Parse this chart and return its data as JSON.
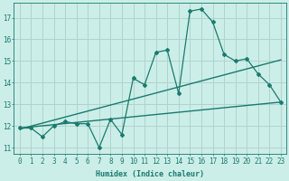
{
  "xlabel": "Humidex (Indice chaleur)",
  "bg_color": "#cceee8",
  "grid_color": "#aed4ce",
  "line_color": "#1a7a6e",
  "xlim": [
    -0.5,
    23.5
  ],
  "ylim": [
    10.7,
    17.7
  ],
  "x_ticks": [
    0,
    1,
    2,
    3,
    4,
    5,
    6,
    7,
    8,
    9,
    10,
    11,
    12,
    13,
    14,
    15,
    16,
    17,
    18,
    19,
    20,
    21,
    22,
    23
  ],
  "y_ticks": [
    11,
    12,
    13,
    14,
    15,
    16,
    17
  ],
  "main_x": [
    0,
    1,
    2,
    3,
    4,
    5,
    6,
    7,
    8,
    9,
    10,
    11,
    12,
    13,
    14,
    15,
    16,
    17,
    18,
    19,
    20,
    21,
    22,
    23
  ],
  "main_y": [
    11.9,
    11.9,
    11.5,
    12.0,
    12.2,
    12.1,
    12.1,
    11.0,
    12.3,
    11.6,
    14.2,
    13.9,
    15.4,
    15.5,
    13.5,
    17.3,
    17.4,
    16.8,
    15.3,
    15.0,
    15.1,
    14.4,
    13.9,
    13.1
  ],
  "line2_x": [
    0,
    23
  ],
  "line2_y": [
    11.9,
    13.1
  ],
  "line3_x": [
    0,
    23
  ],
  "line3_y": [
    11.85,
    15.05
  ],
  "tick_fontsize": 5.5,
  "xlabel_fontsize": 6.0,
  "ylabel_fontsize": 6.0
}
